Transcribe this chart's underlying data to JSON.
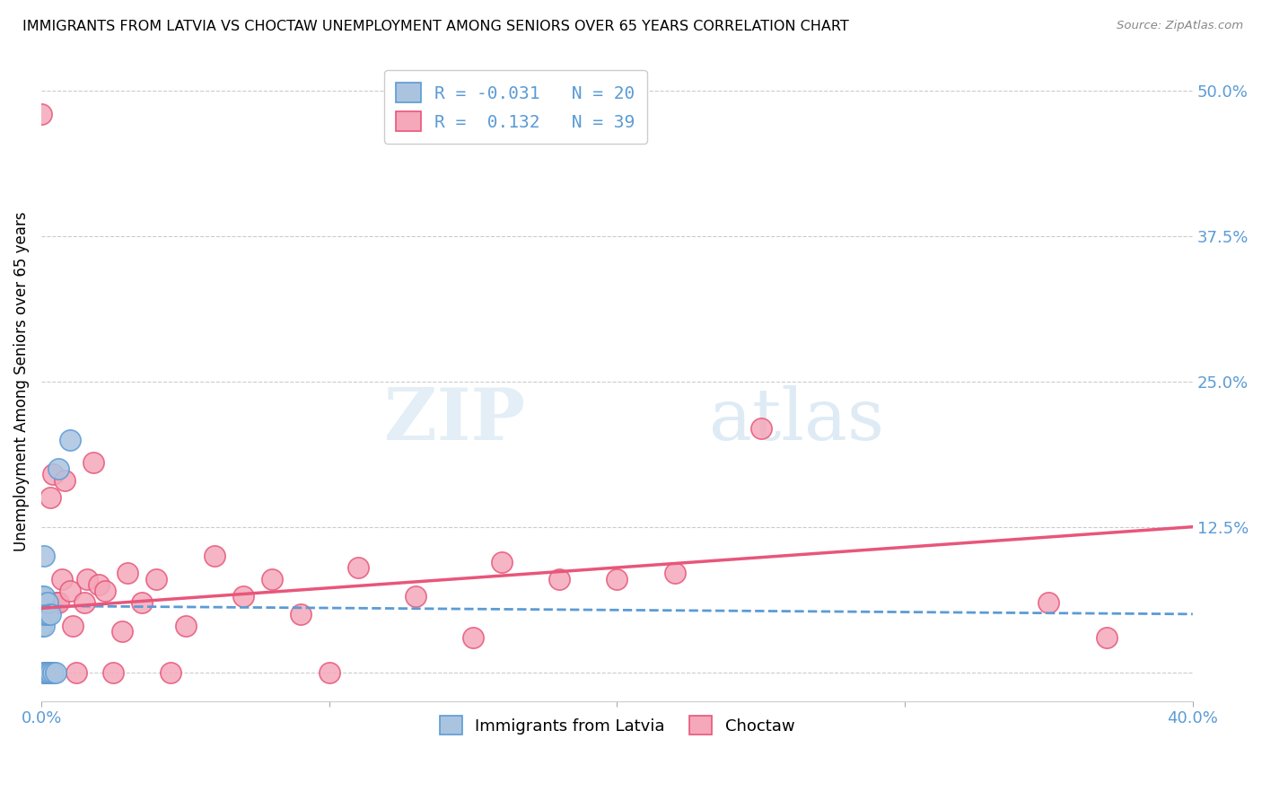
{
  "title": "IMMIGRANTS FROM LATVIA VS CHOCTAW UNEMPLOYMENT AMONG SENIORS OVER 65 YEARS CORRELATION CHART",
  "source": "Source: ZipAtlas.com",
  "ylabel": "Unemployment Among Seniors over 65 years",
  "xlabel_blue": "Immigrants from Latvia",
  "xlabel_pink": "Choctaw",
  "legend_r_blue": "-0.031",
  "legend_n_blue": "20",
  "legend_r_pink": "0.132",
  "legend_n_pink": "39",
  "xlim": [
    0.0,
    0.4
  ],
  "ylim": [
    -0.025,
    0.525
  ],
  "yticks": [
    0.0,
    0.125,
    0.25,
    0.375,
    0.5
  ],
  "ytick_labels": [
    "",
    "12.5%",
    "25.0%",
    "37.5%",
    "50.0%"
  ],
  "xticks": [
    0.0,
    0.1,
    0.2,
    0.3,
    0.4
  ],
  "xtick_labels": [
    "0.0%",
    "",
    "",
    "",
    "40.0%"
  ],
  "color_blue": "#aac4e0",
  "color_pink": "#f4a8ba",
  "line_color_blue": "#5b9bd5",
  "line_color_pink": "#e8567a",
  "watermark_zip": "ZIP",
  "watermark_atlas": "atlas",
  "blue_points_x": [
    0.0,
    0.0,
    0.0,
    0.0,
    0.0,
    0.001,
    0.001,
    0.001,
    0.001,
    0.001,
    0.001,
    0.002,
    0.002,
    0.002,
    0.003,
    0.003,
    0.004,
    0.005,
    0.006,
    0.01
  ],
  "blue_points_y": [
    0.04,
    0.05,
    0.055,
    0.06,
    0.065,
    0.0,
    0.04,
    0.05,
    0.06,
    0.065,
    0.1,
    0.0,
    0.05,
    0.06,
    0.0,
    0.05,
    0.0,
    0.0,
    0.175,
    0.2
  ],
  "pink_points_x": [
    0.0,
    0.001,
    0.002,
    0.003,
    0.004,
    0.005,
    0.006,
    0.007,
    0.008,
    0.01,
    0.011,
    0.012,
    0.015,
    0.016,
    0.018,
    0.02,
    0.022,
    0.025,
    0.028,
    0.03,
    0.035,
    0.04,
    0.045,
    0.05,
    0.06,
    0.07,
    0.08,
    0.09,
    0.1,
    0.11,
    0.13,
    0.15,
    0.16,
    0.18,
    0.2,
    0.22,
    0.25,
    0.35,
    0.37
  ],
  "pink_points_y": [
    0.48,
    0.0,
    0.0,
    0.15,
    0.17,
    0.06,
    0.06,
    0.08,
    0.165,
    0.07,
    0.04,
    0.0,
    0.06,
    0.08,
    0.18,
    0.075,
    0.07,
    0.0,
    0.035,
    0.085,
    0.06,
    0.08,
    0.0,
    0.04,
    0.1,
    0.065,
    0.08,
    0.05,
    0.0,
    0.09,
    0.065,
    0.03,
    0.095,
    0.08,
    0.08,
    0.085,
    0.21,
    0.06,
    0.03
  ],
  "blue_line_x0": 0.0,
  "blue_line_x1": 0.4,
  "blue_line_y0": 0.057,
  "blue_line_y1": 0.05,
  "pink_line_x0": 0.0,
  "pink_line_x1": 0.4,
  "pink_line_y0": 0.055,
  "pink_line_y1": 0.125
}
